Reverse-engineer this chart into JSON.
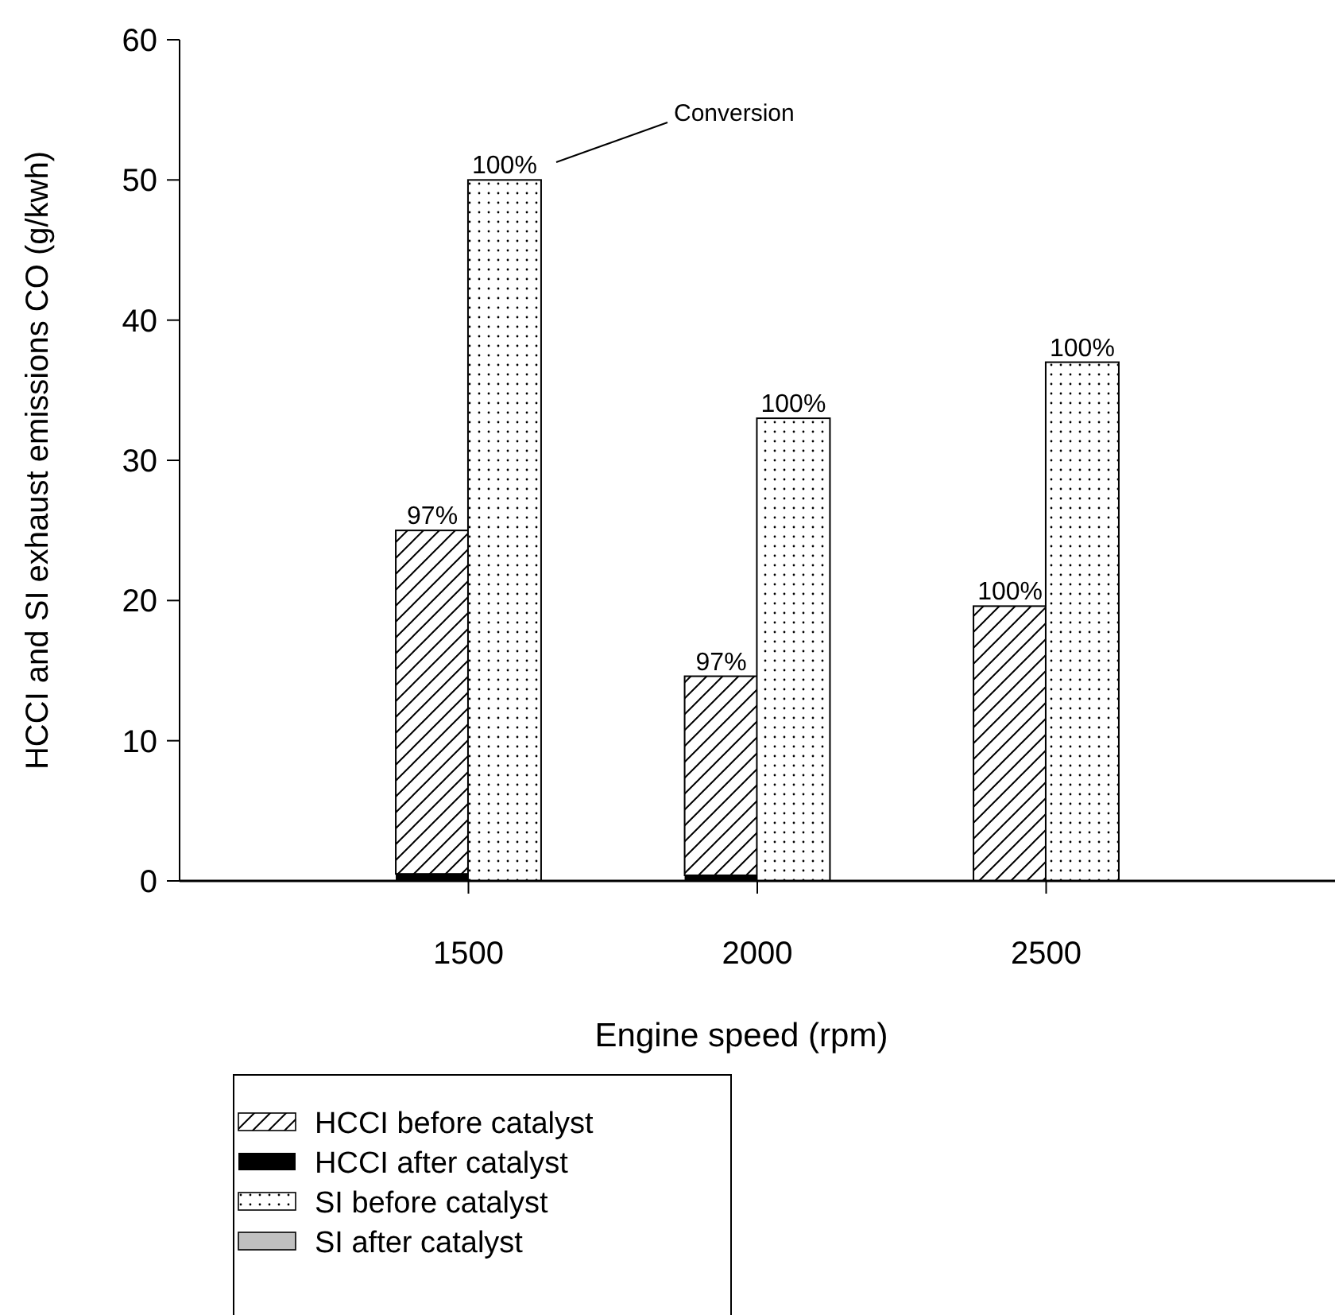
{
  "chart_data": {
    "type": "bar",
    "xlabel": "Engine speed (rpm)",
    "ylabel": "HCCI and SI exhaust emissions CO (g/kwh)",
    "xlim": [
      1000,
      3000
    ],
    "xticks": [
      1500,
      2000,
      2500
    ],
    "series": [
      {
        "name": "HCCI before catalyst",
        "color": "#000000",
        "x": [
          1437.5,
          1937.5,
          2437.5
        ],
        "base": [
          0.5,
          0.4,
          0
        ],
        "values": [
          24.5,
          14.2,
          19.6
        ]
      },
      {
        "name": "HCCI after catalyst",
        "color": "#000000",
        "x": [
          1437.5,
          1937.5,
          2437.5
        ],
        "values": [
          0.5,
          0.4,
          0
        ]
      },
      {
        "name": "SI before catalyst",
        "color": "#000000",
        "x": [
          1562.5,
          2062.5,
          2562.5
        ],
        "values": [
          50,
          33,
          37
        ]
      },
      {
        "name": "SI after catalyst",
        "color": "#c0c0c0",
        "x": [
          1562.5,
          2062.5,
          2562.5
        ],
        "values": [
          0,
          0,
          0
        ]
      }
    ],
    "ylim": [
      0,
      60
    ],
    "yticks": [
      0,
      10,
      20,
      30,
      40,
      50,
      60
    ],
    "legend": "bottom left",
    "annotations": [
      {
        "text": "97%",
        "x": 1437.5,
        "y": 25
      },
      {
        "text": "100%",
        "x": 1562.5,
        "y": 50
      },
      {
        "text": "97%",
        "x": 1937.5,
        "y": 14.6
      },
      {
        "text": "100%",
        "x": 2062.5,
        "y": 33
      },
      {
        "text": "100%",
        "x": 2437.5,
        "y": 19.6
      },
      {
        "text": "100%",
        "x": 2562.5,
        "y": 37
      },
      "Conversion"
    ]
  }
}
